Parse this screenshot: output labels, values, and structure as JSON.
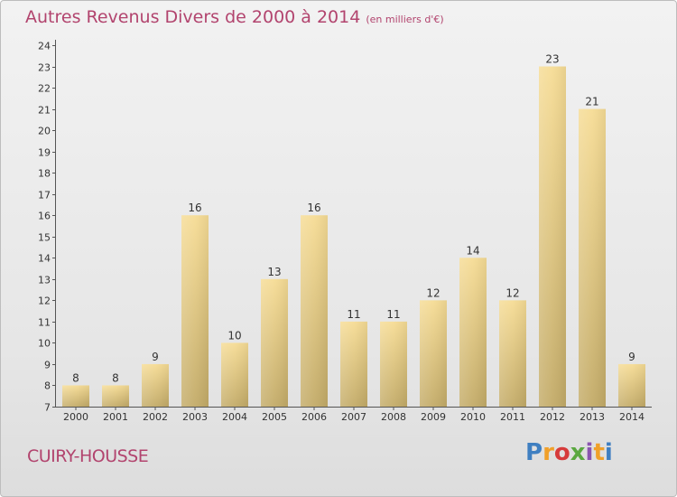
{
  "header": {
    "title": "Autres Revenus Divers de 2000 à 2014",
    "unit": "(en milliers d'€)"
  },
  "footer": {
    "place": "CUIRY-HOUSSE",
    "brand": "Proxiti"
  },
  "colors": {
    "title": "#b2446e",
    "bar_top": "#f6dc95",
    "bar_bottom": "#c3ab68"
  },
  "chart_data": {
    "type": "bar",
    "categories": [
      "2000",
      "2001",
      "2002",
      "2003",
      "2004",
      "2005",
      "2006",
      "2007",
      "2008",
      "2009",
      "2010",
      "2011",
      "2012",
      "2013",
      "2014"
    ],
    "values": [
      8,
      8,
      9,
      16,
      10,
      13,
      16,
      11,
      11,
      12,
      14,
      12,
      23,
      21,
      9
    ],
    "ylim": [
      7,
      24
    ],
    "yticks": [
      7,
      8,
      9,
      10,
      11,
      12,
      13,
      14,
      15,
      16,
      17,
      18,
      19,
      20,
      21,
      22,
      23,
      24
    ],
    "data_labels": true,
    "grid": false
  }
}
